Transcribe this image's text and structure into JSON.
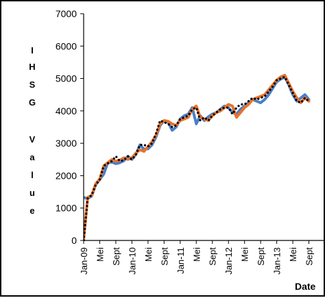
{
  "chart_data": {
    "type": "line",
    "xlabel": "Date",
    "ylabel": "IHSG Value",
    "ylabel_letters": [
      "I",
      "H",
      "S",
      "G",
      "V",
      "a",
      "l",
      "u",
      "e"
    ],
    "ylim": [
      0,
      7000
    ],
    "yticks": [
      0,
      1000,
      2000,
      3000,
      4000,
      5000,
      6000,
      7000
    ],
    "ytick_labels": [
      "0",
      "1000",
      "2000",
      "3000",
      "4000",
      "5000",
      "6000",
      "7000"
    ],
    "x_index_range": [
      0,
      60
    ],
    "xticks": [
      {
        "i": 0,
        "label": "Jan-09"
      },
      {
        "i": 4,
        "label": "Mei"
      },
      {
        "i": 8,
        "label": "Sept"
      },
      {
        "i": 12,
        "label": "Jan-10"
      },
      {
        "i": 16,
        "label": "Mei"
      },
      {
        "i": 20,
        "label": "Sept"
      },
      {
        "i": 24,
        "label": "Jan-11"
      },
      {
        "i": 28,
        "label": "Mei"
      },
      {
        "i": 32,
        "label": "Sept"
      },
      {
        "i": 36,
        "label": "Jan-12"
      },
      {
        "i": 40,
        "label": "Mei"
      },
      {
        "i": 44,
        "label": "Sept"
      },
      {
        "i": 48,
        "label": "Jan-13"
      },
      {
        "i": 52,
        "label": "Mei"
      },
      {
        "i": 56,
        "label": "Sept"
      }
    ],
    "grid": false,
    "legend": "none",
    "series": [
      {
        "color": "#4a7fc9",
        "style": "solid",
        "values": [
          1330,
          1290,
          1370,
          1720,
          1880,
          2050,
          2400,
          2420,
          2370,
          2400,
          2460,
          2600,
          2500,
          2660,
          2950,
          2820,
          2830,
          2950,
          3200,
          3550,
          3700,
          3650,
          3400,
          3500,
          3750,
          3850,
          3900,
          4100,
          3600,
          3850,
          3700,
          3820,
          3900,
          3950,
          4050,
          4150,
          4100,
          3950,
          3900,
          4050,
          4150,
          4250,
          4350,
          4300,
          4250,
          4350,
          4500,
          4700,
          4900,
          4980,
          5050,
          4800,
          4500,
          4300,
          4400,
          4500,
          4350
        ]
      },
      {
        "color": "#e8732c",
        "style": "solid",
        "values": [
          0,
          1330,
          1390,
          1750,
          1900,
          2300,
          2400,
          2500,
          2450,
          2480,
          2550,
          2500,
          2550,
          2700,
          2800,
          2750,
          2900,
          3050,
          3250,
          3600,
          3700,
          3680,
          3600,
          3550,
          3700,
          3750,
          3800,
          4050,
          4150,
          3800,
          3750,
          3700,
          3850,
          3950,
          4000,
          4100,
          4200,
          4150,
          3800,
          3950,
          4100,
          4200,
          4350,
          4400,
          4450,
          4500,
          4650,
          4800,
          4950,
          5050,
          5100,
          4850,
          4600,
          4400,
          4250,
          4400,
          4300
        ]
      },
      {
        "color": "#000000",
        "style": "dotted",
        "values": [
          0,
          1300,
          1400,
          1720,
          1880,
          2300,
          2380,
          2450,
          2600,
          2450,
          2480,
          2600,
          2500,
          2650,
          2950,
          2950,
          2900,
          3000,
          3300,
          3700,
          3650,
          3600,
          3500,
          3550,
          3750,
          3800,
          3850,
          4050,
          4100,
          3700,
          3800,
          3700,
          3850,
          3950,
          4050,
          4100,
          4100,
          3900,
          4100,
          4200,
          4200,
          4300,
          4400,
          4350,
          4400,
          4450,
          4600,
          4750,
          4950,
          5000,
          5050,
          4800,
          4550,
          4300,
          4250,
          4400,
          4300
        ]
      }
    ]
  }
}
